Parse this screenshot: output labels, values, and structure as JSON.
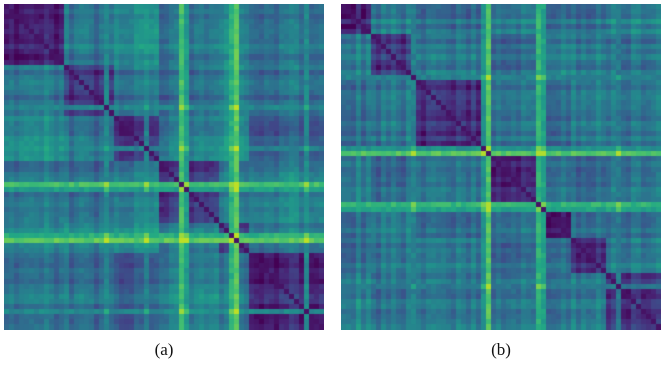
{
  "figure": {
    "panels": [
      {
        "id": "a",
        "caption": "(a)"
      },
      {
        "id": "b",
        "caption": "(b)"
      }
    ]
  },
  "chart_data": [
    {
      "type": "heatmap",
      "caption": "(a)",
      "colormap": "viridis",
      "value_range": [
        0,
        1
      ],
      "grid_size": 64,
      "cluster_breaks": [
        12,
        22,
        31,
        43,
        49,
        64
      ],
      "block_levels": [
        [
          0.12,
          0.4,
          0.5,
          0.38,
          0.45,
          0.4
        ],
        [
          0.4,
          0.14,
          0.38,
          0.32,
          0.42,
          0.36
        ],
        [
          0.5,
          0.38,
          0.15,
          0.4,
          0.48,
          0.3
        ],
        [
          0.38,
          0.32,
          0.4,
          0.12,
          0.36,
          0.42
        ],
        [
          0.45,
          0.42,
          0.48,
          0.36,
          0.14,
          0.38
        ],
        [
          0.4,
          0.36,
          0.3,
          0.42,
          0.38,
          0.12
        ]
      ],
      "bright_lines": [
        {
          "index": 35,
          "value": 0.85
        },
        {
          "index": 46,
          "value": 0.9
        },
        {
          "index": 45,
          "value": 0.78
        },
        {
          "index": 36,
          "value": 0.7
        },
        {
          "index": 20,
          "value": 0.6
        },
        {
          "index": 28,
          "value": 0.58
        },
        {
          "index": 60,
          "value": 0.62
        }
      ]
    },
    {
      "type": "heatmap",
      "caption": "(b)",
      "colormap": "viridis",
      "value_range": [
        0,
        1
      ],
      "grid_size": 64,
      "cluster_breaks": [
        6,
        15,
        29,
        39,
        46,
        53,
        64
      ],
      "block_levels": [
        [
          0.12,
          0.42,
          0.36,
          0.45,
          0.4,
          0.38,
          0.44
        ],
        [
          0.42,
          0.14,
          0.38,
          0.34,
          0.44,
          0.4,
          0.36
        ],
        [
          0.36,
          0.38,
          0.13,
          0.4,
          0.36,
          0.42,
          0.38
        ],
        [
          0.45,
          0.34,
          0.4,
          0.15,
          0.42,
          0.36,
          0.4
        ],
        [
          0.4,
          0.44,
          0.36,
          0.42,
          0.12,
          0.4,
          0.38
        ],
        [
          0.38,
          0.4,
          0.42,
          0.36,
          0.4,
          0.14,
          0.42
        ],
        [
          0.44,
          0.36,
          0.38,
          0.4,
          0.38,
          0.42,
          0.13
        ]
      ],
      "bright_lines": [
        {
          "index": 29,
          "value": 0.88
        },
        {
          "index": 39,
          "value": 0.8
        },
        {
          "index": 40,
          "value": 0.72
        },
        {
          "index": 14,
          "value": 0.58
        },
        {
          "index": 28,
          "value": 0.65
        },
        {
          "index": 55,
          "value": 0.55
        }
      ]
    }
  ]
}
